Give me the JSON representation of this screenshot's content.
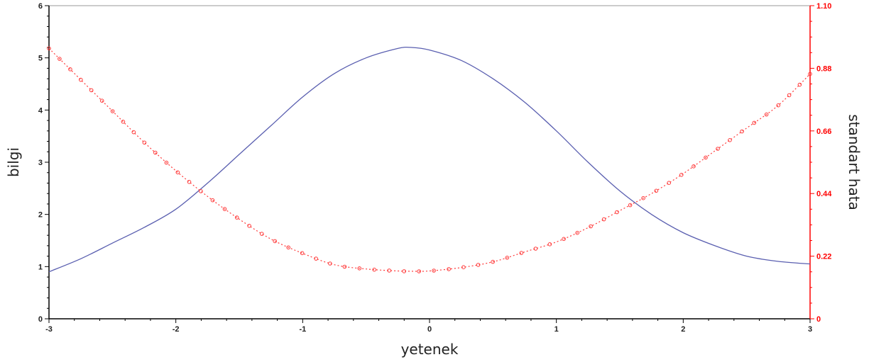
{
  "chart_data": {
    "type": "line",
    "title": "",
    "xlabel": "yetenek",
    "ylabel": "bilgi",
    "y2label": "standart hata",
    "xlim": [
      -3,
      3
    ],
    "ylim": [
      0,
      6
    ],
    "y2lim": [
      0,
      1.1
    ],
    "x_ticks": [
      "-3",
      "-2",
      "-1",
      "0",
      "1",
      "2",
      "3"
    ],
    "y_ticks": [
      "0",
      "1",
      "2",
      "3",
      "4",
      "5",
      "6"
    ],
    "y2_ticks": [
      "0",
      "0.22",
      "0.44",
      "0.66",
      "0.88",
      "1.10"
    ],
    "legend": "none",
    "grid": false,
    "series": [
      {
        "axis": "left",
        "style": "solid",
        "color": "#5a5fb0",
        "x": [
          -3,
          -2.75,
          -2.5,
          -2.25,
          -2,
          -1.75,
          -1.5,
          -1.25,
          -1,
          -0.75,
          -0.5,
          -0.25,
          -0.15,
          0,
          0.25,
          0.5,
          0.75,
          1,
          1.25,
          1.5,
          1.75,
          2,
          2.25,
          2.5,
          2.75,
          3
        ],
        "y": [
          0.9,
          1.15,
          1.45,
          1.75,
          2.1,
          2.6,
          3.15,
          3.7,
          4.25,
          4.7,
          5.0,
          5.18,
          5.2,
          5.15,
          4.95,
          4.6,
          4.15,
          3.6,
          3.0,
          2.45,
          2.0,
          1.65,
          1.4,
          1.2,
          1.1,
          1.05
        ]
      },
      {
        "axis": "right",
        "style": "dotted-circle-markers",
        "color": "#ff3b3b",
        "x": [
          -3,
          -2.75,
          -2.5,
          -2.25,
          -2,
          -1.75,
          -1.5,
          -1.25,
          -1,
          -0.75,
          -0.5,
          -0.25,
          -0.15,
          0,
          0.25,
          0.5,
          0.75,
          1,
          1.25,
          1.5,
          1.75,
          2,
          2.25,
          2.5,
          2.75,
          3
        ],
        "y": [
          0.95,
          0.84,
          0.73,
          0.62,
          0.52,
          0.43,
          0.35,
          0.28,
          0.23,
          0.19,
          0.175,
          0.168,
          0.167,
          0.168,
          0.18,
          0.2,
          0.235,
          0.27,
          0.32,
          0.38,
          0.44,
          0.51,
          0.59,
          0.67,
          0.75,
          0.86
        ]
      }
    ]
  }
}
